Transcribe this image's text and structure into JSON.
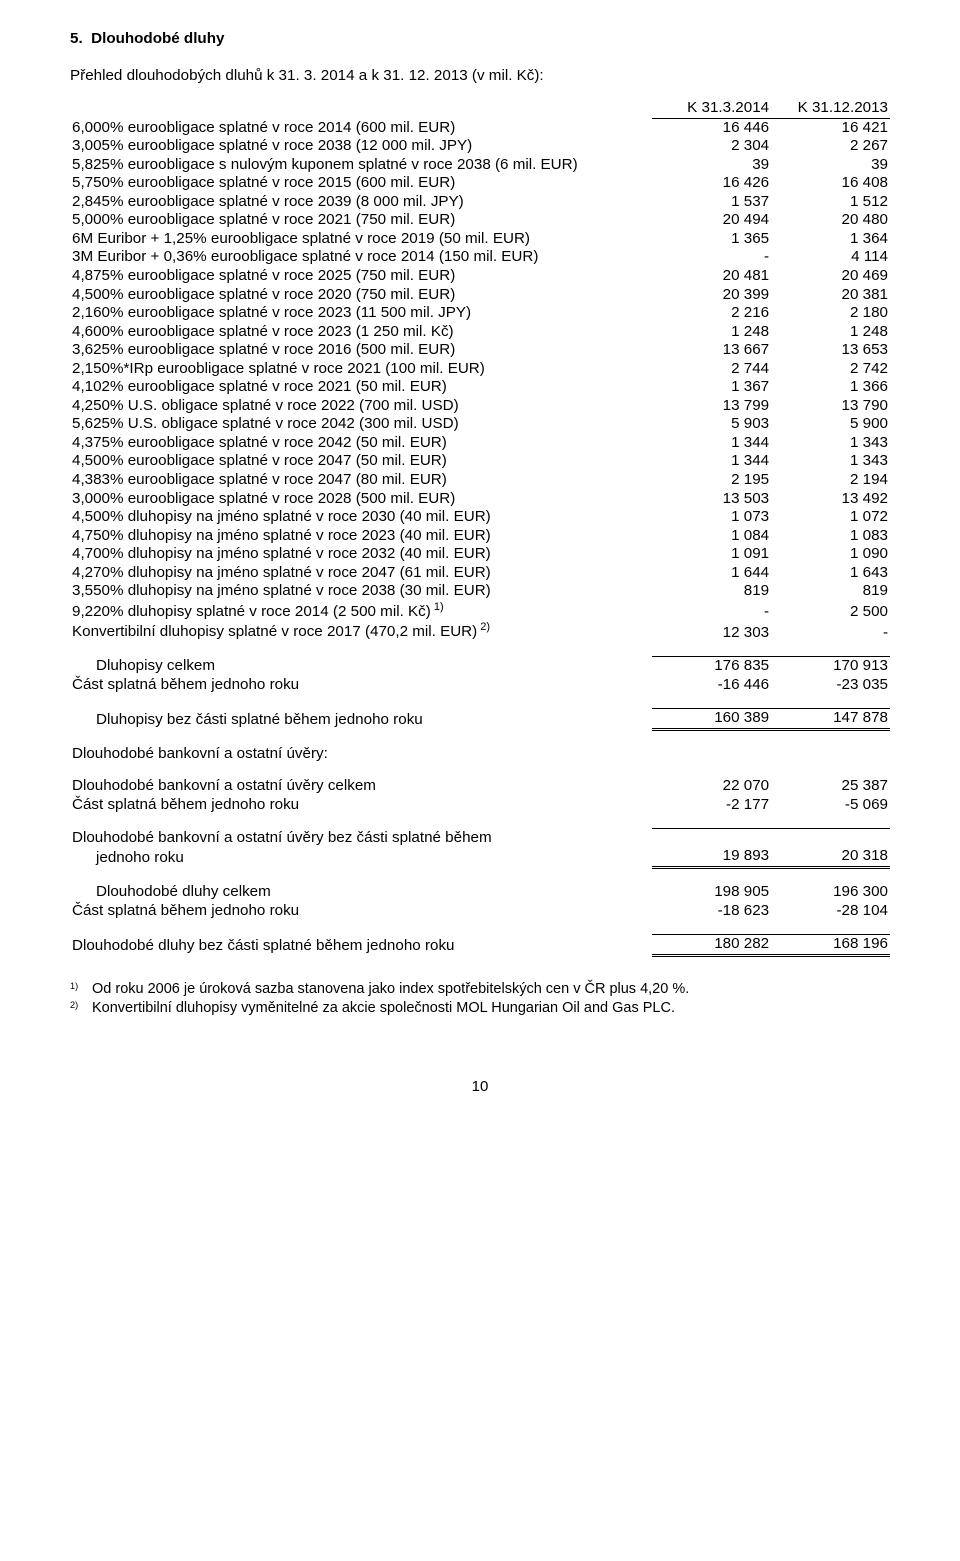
{
  "section_number": "5.",
  "section_title": "Dlouhodobé dluhy",
  "intro": "Přehled dlouhodobých dluhů k 31. 3. 2014 a k 31. 12. 2013 (v mil. Kč):",
  "col_headers": [
    "K 31.3.2014",
    "K 31.12.2013"
  ],
  "rows": [
    {
      "label": "6,000% euroobligace splatné v roce 2014 (600 mil. EUR)",
      "a": "16 446",
      "b": "16 421"
    },
    {
      "label": "3,005% euroobligace splatné v roce 2038 (12 000 mil. JPY)",
      "a": "2 304",
      "b": "2 267"
    },
    {
      "label": "5,825% euroobligace s nulovým kuponem splatné v roce 2038 (6 mil. EUR)",
      "a": "39",
      "b": "39"
    },
    {
      "label": "5,750% euroobligace splatné v roce 2015 (600 mil. EUR)",
      "a": "16 426",
      "b": "16 408"
    },
    {
      "label": "2,845% euroobligace splatné v roce 2039 (8 000 mil. JPY)",
      "a": "1 537",
      "b": "1 512"
    },
    {
      "label": "5,000% euroobligace splatné v roce 2021 (750 mil. EUR)",
      "a": "20 494",
      "b": "20 480"
    },
    {
      "label": "6M Euribor + 1,25% euroobligace splatné v roce 2019 (50 mil. EUR)",
      "a": "1 365",
      "b": "1 364"
    },
    {
      "label": "3M Euribor + 0,36% euroobligace splatné v roce 2014 (150 mil. EUR)",
      "a": "-",
      "b": "4 114"
    },
    {
      "label": "4,875% euroobligace splatné v roce 2025 (750 mil. EUR)",
      "a": "20 481",
      "b": "20 469"
    },
    {
      "label": "4,500% euroobligace splatné v roce 2020 (750 mil. EUR)",
      "a": "20 399",
      "b": "20 381"
    },
    {
      "label": "2,160% euroobligace splatné v roce 2023 (11 500 mil. JPY)",
      "a": "2 216",
      "b": "2 180"
    },
    {
      "label": "4,600% euroobligace splatné v roce 2023 (1 250 mil. Kč)",
      "a": "1 248",
      "b": "1 248"
    },
    {
      "label": "3,625% euroobligace splatné v roce 2016 (500 mil. EUR)",
      "a": "13 667",
      "b": "13 653"
    },
    {
      "label": "2,150%*IRp euroobligace splatné v roce 2021 (100 mil. EUR)",
      "a": "2 744",
      "b": "2 742"
    },
    {
      "label": "4,102% euroobligace splatné v roce 2021 (50 mil. EUR)",
      "a": "1 367",
      "b": "1 366"
    },
    {
      "label": "4,250% U.S. obligace splatné v roce 2022 (700 mil. USD)",
      "a": "13 799",
      "b": "13 790"
    },
    {
      "label": "5,625% U.S. obligace splatné v roce 2042 (300 mil. USD)",
      "a": "5 903",
      "b": "5 900"
    },
    {
      "label": "4,375% euroobligace splatné v roce 2042 (50 mil. EUR)",
      "a": "1 344",
      "b": "1 343"
    },
    {
      "label": "4,500% euroobligace splatné v roce 2047 (50 mil. EUR)",
      "a": "1 344",
      "b": "1 343"
    },
    {
      "label": "4,383% euroobligace splatné v roce 2047 (80 mil. EUR)",
      "a": "2 195",
      "b": "2 194"
    },
    {
      "label": "3,000% euroobligace splatné v roce 2028 (500 mil. EUR)",
      "a": "13 503",
      "b": "13 492"
    },
    {
      "label": "4,500% dluhopisy na jméno splatné v roce 2030 (40 mil. EUR)",
      "a": "1 073",
      "b": "1 072"
    },
    {
      "label": "4,750% dluhopisy na jméno splatné v roce 2023 (40 mil. EUR)",
      "a": "1 084",
      "b": "1 083"
    },
    {
      "label": "4,700% dluhopisy na jméno splatné v roce 2032 (40 mil. EUR)",
      "a": "1 091",
      "b": "1 090"
    },
    {
      "label": "4,270% dluhopisy na jméno splatné v roce 2047 (61 mil. EUR)",
      "a": "1 644",
      "b": "1 643"
    },
    {
      "label": "3,550% dluhopisy na jméno splatné v roce 2038 (30 mil. EUR)",
      "a": "819",
      "b": "819"
    },
    {
      "label": "9,220% dluhopisy splatné v roce 2014 (2 500 mil. Kč)",
      "sup": "1)",
      "a": "-",
      "b": "2 500"
    },
    {
      "label": "Konvertibilní dluhopisy splatné v roce 2017 (470,2 mil. EUR)",
      "sup": "2)",
      "a": "12 303",
      "b": "-"
    }
  ],
  "subtotal_block1": [
    {
      "label": "Dluhopisy celkem",
      "a": "176 835",
      "b": "170 913",
      "indent": true,
      "rule_top": true
    },
    {
      "label": "Část splatná během jednoho roku",
      "a": "-16 446",
      "b": "-23 035"
    }
  ],
  "subtotal_block1_result": {
    "label": "Dluhopisy bez části splatné během jednoho roku",
    "a": "160 389",
    "b": "147 878",
    "indent": true,
    "rule_top": true,
    "dbl_bottom": true
  },
  "bank_section_title": "Dlouhodobé bankovní a ostatní úvěry:",
  "bank_rows": [
    {
      "label": "Dlouhodobé bankovní a ostatní úvěry celkem",
      "a": "22 070",
      "b": "25 387"
    },
    {
      "label": "Část splatná během jednoho roku",
      "a": "-2 177",
      "b": "-5 069"
    }
  ],
  "bank_result_label1": "Dlouhodobé bankovní a ostatní úvěry bez části splatné během",
  "bank_result_label2": "jednoho roku",
  "bank_result": {
    "a": "19 893",
    "b": "20 318"
  },
  "totals": [
    {
      "label": "Dlouhodobé dluhy celkem",
      "a": "198 905",
      "b": "196 300",
      "indent": true
    },
    {
      "label": "Část splatná během jednoho roku",
      "a": "-18 623",
      "b": "-28 104"
    }
  ],
  "grand_total": {
    "label": "Dlouhodobé dluhy bez části splatné během jednoho roku",
    "a": "180 282",
    "b": "168 196"
  },
  "footnotes": [
    {
      "mark": "1)",
      "text": "Od roku 2006 je úroková sazba stanovena jako index spotřebitelských cen v ČR plus 4,20 %."
    },
    {
      "mark": "2)",
      "text": "Konvertibilní dluhopisy vyměnitelné za akcie společnosti MOL Hungarian Oil and Gas PLC."
    }
  ],
  "page_number": "10"
}
